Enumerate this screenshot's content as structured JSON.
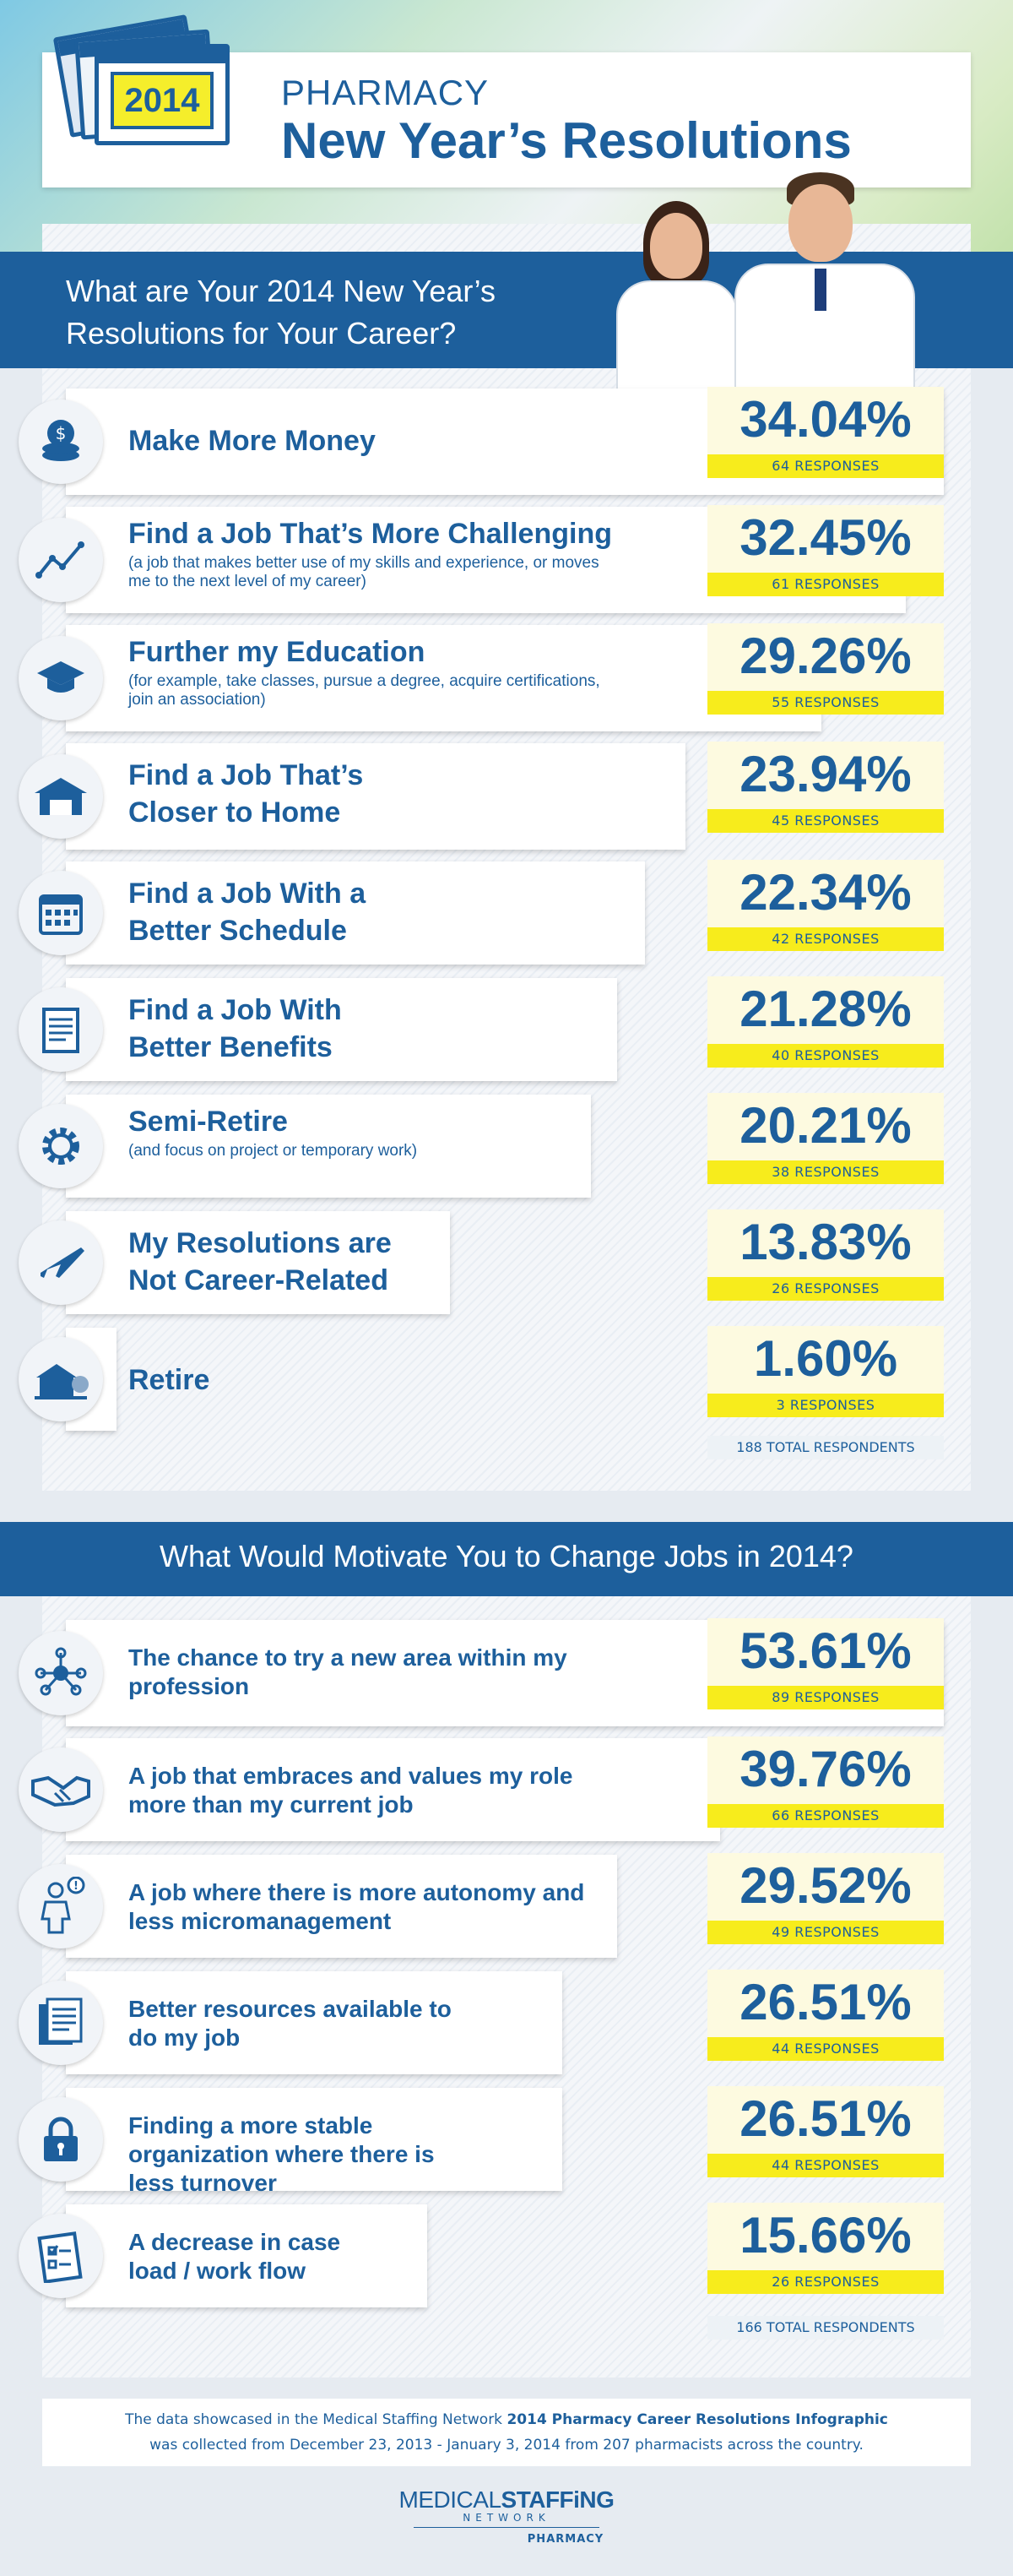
{
  "header": {
    "year": "2014",
    "subtitle": "PHARMACY",
    "title": "New Year’s Resolutions"
  },
  "section1": {
    "question": "What are Your 2014 New Year’s Resolutions for Your Career?",
    "items": [
      {
        "title": "Make More Money",
        "note": "",
        "percent": "34.04%",
        "responses": "64 RESPONSES",
        "icon": "coins-icon"
      },
      {
        "title": "Find a Job That’s More Challenging",
        "note": "(a job that makes better use of my skills and experience, or moves me to the next level of my career)",
        "percent": "32.45%",
        "responses": "61 RESPONSES",
        "icon": "growth-chart-icon"
      },
      {
        "title": "Further my Education",
        "note": "(for example, take classes, pursue a degree, acquire certifications, join an association)",
        "percent": "29.26%",
        "responses": "55 RESPONSES",
        "icon": "graduation-cap-icon"
      },
      {
        "title": "Find a Job That’s Closer to Home",
        "note": "",
        "percent": "23.94%",
        "responses": "45 RESPONSES",
        "icon": "house-icon"
      },
      {
        "title": "Find a Job With a Better Schedule",
        "note": "",
        "percent": "22.34%",
        "responses": "42 RESPONSES",
        "icon": "calendar-icon"
      },
      {
        "title": "Find a Job With Better Benefits",
        "note": "",
        "percent": "21.28%",
        "responses": "40 RESPONSES",
        "icon": "document-icon"
      },
      {
        "title": "Semi-Retire",
        "note": "(and focus on project or temporary work)",
        "percent": "20.21%",
        "responses": "38 RESPONSES",
        "icon": "gear-icon"
      },
      {
        "title": "My Resolutions are Not Career-Related",
        "note": "",
        "percent": "13.83%",
        "responses": "26 RESPONSES",
        "icon": "airplane-icon"
      },
      {
        "title": "Retire",
        "note": "",
        "percent": "1.60%",
        "responses": "3 RESPONSES",
        "icon": "retirement-house-icon"
      }
    ],
    "total": "188 TOTAL RESPONDENTS"
  },
  "section2": {
    "question": "What Would Motivate You to Change Jobs in 2014?",
    "items": [
      {
        "title": "The chance to try a new area within my profession",
        "percent": "53.61%",
        "responses": "89 RESPONSES",
        "icon": "network-icon"
      },
      {
        "title": "A job that embraces and values my role more than my current job",
        "percent": "39.76%",
        "responses": "66 RESPONSES",
        "icon": "handshake-icon"
      },
      {
        "title": "A job where there is more autonomy and less micromanagement",
        "percent": "29.52%",
        "responses": "49 RESPONSES",
        "icon": "person-alert-icon"
      },
      {
        "title": "Better resources available to do my job",
        "percent": "26.51%",
        "responses": "44 RESPONSES",
        "icon": "documents-icon"
      },
      {
        "title": "Finding a more stable organization where there is less turnover",
        "percent": "26.51%",
        "responses": "44 RESPONSES",
        "icon": "padlock-icon"
      },
      {
        "title": "A decrease in case load / work flow",
        "percent": "15.66%",
        "responses": "26 RESPONSES",
        "icon": "checklist-icon"
      }
    ],
    "total": "166 TOTAL RESPONDENTS"
  },
  "footer": {
    "line1_pre": "The data showcased in the Medical Staffing Network",
    "line1_bold": "2014 Pharmacy Career Resolutions Infographic",
    "line2": "was collected from December 23, 2013 - January 3, 2014 from 207 pharmacists across the country."
  },
  "logo": {
    "word1": "MEDICAL",
    "word2": "STAFFiNG",
    "network": "NETWORK",
    "division": "PHARMACY"
  }
}
